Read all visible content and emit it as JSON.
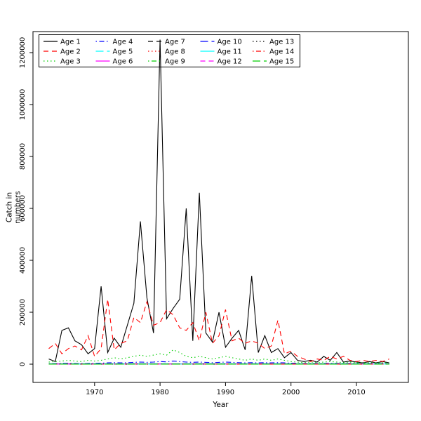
{
  "chart_data": {
    "type": "line",
    "title": "",
    "xlabel": "Year",
    "ylabel": "Catch in numbers",
    "x_start": 1963,
    "x_end": 2015,
    "xlim": [
      1960.6,
      2017.4
    ],
    "ylim": [
      0,
      1250000
    ],
    "x_ticks": [
      1970,
      1980,
      1990,
      2000,
      2010
    ],
    "x_tick_labels": [
      "1970",
      "1980",
      "1990",
      "2000",
      "2010"
    ],
    "y_ticks": [
      0,
      200000,
      400000,
      600000,
      800000,
      1000000,
      1200000
    ],
    "y_tick_labels": [
      "0",
      "200000",
      "400000",
      "600000",
      "800000",
      "1000000",
      "1200000"
    ],
    "grid": false,
    "legend_position": "top-left",
    "legend_columns": 5,
    "series": [
      {
        "name": "Age 1",
        "color": "#000000",
        "linetype": "solid",
        "values": [
          20000,
          10000,
          130000,
          140000,
          90000,
          75000,
          40000,
          60000,
          300000,
          45000,
          100000,
          65000,
          150000,
          235000,
          550000,
          255000,
          120000,
          1250000,
          175000,
          215000,
          250000,
          600000,
          90000,
          660000,
          120000,
          85000,
          200000,
          65000,
          100000,
          130000,
          55000,
          340000,
          45000,
          110000,
          45000,
          60000,
          25000,
          45000,
          15000,
          10000,
          15000,
          8000,
          30000,
          15000,
          45000,
          8000,
          12000,
          8000,
          5000,
          10000,
          5000,
          10000,
          5000
        ]
      },
      {
        "name": "Age 2",
        "color": "#FF0000",
        "linetype": "dashed",
        "values": [
          60000,
          80000,
          40000,
          60000,
          70000,
          55000,
          110000,
          30000,
          60000,
          250000,
          55000,
          80000,
          90000,
          180000,
          160000,
          240000,
          150000,
          160000,
          210000,
          190000,
          140000,
          130000,
          160000,
          90000,
          200000,
          80000,
          110000,
          210000,
          90000,
          100000,
          80000,
          90000,
          80000,
          60000,
          70000,
          170000,
          40000,
          50000,
          30000,
          20000,
          10000,
          20000,
          15000,
          30000,
          20000,
          30000,
          15000,
          10000,
          15000,
          10000,
          15000,
          10000,
          20000
        ]
      },
      {
        "name": "Age 3",
        "color": "#00CD00",
        "linetype": "dotted",
        "values": [
          8000,
          10000,
          12000,
          15000,
          12000,
          10000,
          15000,
          12000,
          15000,
          20000,
          25000,
          20000,
          25000,
          30000,
          35000,
          30000,
          35000,
          40000,
          35000,
          55000,
          45000,
          30000,
          25000,
          30000,
          25000,
          20000,
          25000,
          30000,
          25000,
          20000,
          15000,
          20000,
          15000,
          20000,
          15000,
          20000,
          15000,
          10000,
          8000,
          6000,
          8000,
          6000,
          8000,
          10000,
          8000,
          6000,
          8000,
          6000,
          5000,
          6000,
          5000,
          6000,
          5000
        ]
      },
      {
        "name": "Age 4",
        "color": "#0000FF",
        "linetype": "dotdash",
        "values": [
          2000,
          2500,
          3000,
          3500,
          3000,
          2500,
          3000,
          3500,
          4000,
          5000,
          6000,
          5000,
          6000,
          7000,
          8000,
          7000,
          8000,
          10000,
          9000,
          12000,
          10000,
          8000,
          7000,
          8000,
          7000,
          6000,
          7000,
          8000,
          7000,
          6000,
          5000,
          6000,
          5000,
          6000,
          5000,
          6000,
          5000,
          4000,
          3000,
          2500,
          3000,
          2500,
          3000,
          3500,
          3000,
          2500,
          3000,
          2500,
          2000,
          2500,
          2000,
          2500,
          2000
        ]
      },
      {
        "name": "Age 5",
        "color": "#00FFFF",
        "linetype": "longdash",
        "values": [
          1500,
          1800,
          1600,
          2000,
          1700,
          1900,
          1600,
          1800,
          1500,
          1700,
          1500,
          1800,
          1600,
          2000,
          1700,
          1900,
          1600,
          1800,
          1500,
          1700,
          1500,
          1800,
          1600,
          2000,
          1700,
          1900,
          1600,
          1800,
          1500,
          1700,
          1500,
          1800,
          1600,
          2000,
          1700,
          1900,
          1600,
          1800,
          1500,
          1700,
          1500,
          1800,
          1600,
          2000,
          1700,
          1900,
          1600,
          1800,
          1500,
          1700,
          1500,
          1800,
          1600
        ]
      },
      {
        "name": "Age 6",
        "color": "#FF00FF",
        "linetype": "solid",
        "values": [
          1200,
          1400,
          1300,
          1500,
          1250,
          1350,
          1200,
          1450,
          1300,
          1400,
          1200,
          1400,
          1300,
          1500,
          1250,
          1350,
          1200,
          1450,
          1300,
          1400,
          1200,
          1400,
          1300,
          1500,
          1250,
          1350,
          1200,
          1450,
          1300,
          1400,
          1200,
          1400,
          1300,
          1500,
          1250,
          1350,
          1200,
          1450,
          1300,
          1400,
          1200,
          1400,
          1300,
          1500,
          1250,
          1350,
          1200,
          1450,
          1300,
          1400,
          1200,
          1400,
          1300
        ]
      },
      {
        "name": "Age 7",
        "color": "#000000",
        "linetype": "dashed",
        "values": [
          1000,
          1200,
          1100,
          1300,
          1050,
          1150,
          1000,
          1250,
          1100,
          1200,
          1000,
          1200,
          1100,
          1300,
          1050,
          1150,
          1000,
          1250,
          1100,
          1200,
          1000,
          1200,
          1100,
          1300,
          1050,
          1150,
          1000,
          1250,
          1100,
          1200,
          1000,
          1200,
          1100,
          1300,
          1050,
          1150,
          1000,
          1250,
          1100,
          1200,
          1000,
          1200,
          1100,
          1300,
          1050,
          1150,
          1000,
          1250,
          1100,
          1200,
          1000,
          1200,
          1100
        ]
      },
      {
        "name": "Age 8",
        "color": "#FF0000",
        "linetype": "dotted",
        "values": [
          800,
          950,
          900,
          1000,
          850,
          900,
          800,
          950,
          900,
          1000,
          800,
          950,
          900,
          1000,
          850,
          900,
          800,
          950,
          900,
          1000,
          800,
          950,
          900,
          1000,
          850,
          900,
          800,
          950,
          900,
          1000,
          800,
          950,
          900,
          1000,
          850,
          900,
          800,
          950,
          900,
          1000,
          800,
          950,
          900,
          1000,
          850,
          900,
          800,
          950,
          900,
          1000,
          800,
          950,
          900
        ]
      },
      {
        "name": "Age 9",
        "color": "#00CD00",
        "linetype": "dotdash",
        "values": [
          700,
          800,
          750,
          850,
          700,
          800,
          750,
          850,
          700,
          800,
          700,
          800,
          750,
          850,
          700,
          800,
          750,
          850,
          700,
          800,
          700,
          800,
          750,
          850,
          700,
          800,
          750,
          850,
          700,
          800,
          700,
          800,
          750,
          850,
          700,
          800,
          750,
          850,
          700,
          800,
          700,
          800,
          750,
          850,
          700,
          800,
          750,
          850,
          700,
          800,
          700,
          800,
          750
        ]
      },
      {
        "name": "Age 10",
        "color": "#0000FF",
        "linetype": "longdash",
        "values": [
          600,
          700,
          650,
          750,
          600,
          700,
          650,
          750,
          600,
          700,
          600,
          700,
          650,
          750,
          600,
          700,
          650,
          750,
          600,
          700,
          600,
          700,
          650,
          750,
          600,
          700,
          650,
          750,
          600,
          700,
          600,
          700,
          650,
          750,
          600,
          700,
          650,
          750,
          600,
          700,
          600,
          700,
          650,
          750,
          600,
          700,
          650,
          750,
          600,
          700,
          600,
          700,
          650
        ]
      },
      {
        "name": "Age 11",
        "color": "#00FFFF",
        "linetype": "solid",
        "values": [
          500,
          600,
          550,
          650,
          500,
          600,
          550,
          650,
          500,
          600,
          500,
          600,
          550,
          650,
          500,
          600,
          550,
          650,
          500,
          600,
          500,
          600,
          550,
          650,
          500,
          600,
          550,
          650,
          500,
          600,
          500,
          600,
          550,
          650,
          500,
          600,
          550,
          650,
          500,
          600,
          500,
          600,
          550,
          650,
          500,
          600,
          550,
          650,
          500,
          600,
          500,
          600,
          550
        ]
      },
      {
        "name": "Age 12",
        "color": "#FF00FF",
        "linetype": "dashed",
        "values": [
          400,
          500,
          450,
          550,
          400,
          500,
          450,
          550,
          400,
          500,
          400,
          500,
          450,
          550,
          400,
          500,
          450,
          550,
          400,
          500,
          400,
          500,
          450,
          550,
          400,
          500,
          450,
          550,
          400,
          500,
          400,
          500,
          450,
          550,
          400,
          500,
          450,
          550,
          400,
          500,
          400,
          500,
          450,
          550,
          400,
          500,
          450,
          550,
          400,
          500,
          400,
          500,
          450
        ]
      },
      {
        "name": "Age 13",
        "color": "#000000",
        "linetype": "dotted",
        "values": [
          350,
          400,
          380,
          420,
          350,
          400,
          380,
          420,
          350,
          400,
          350,
          400,
          380,
          420,
          350,
          400,
          380,
          420,
          350,
          400,
          350,
          400,
          380,
          420,
          350,
          400,
          380,
          420,
          350,
          400,
          350,
          400,
          380,
          420,
          350,
          400,
          380,
          420,
          350,
          400,
          350,
          400,
          380,
          420,
          350,
          400,
          380,
          420,
          350,
          400,
          350,
          400,
          380
        ]
      },
      {
        "name": "Age 14",
        "color": "#FF0000",
        "linetype": "dotdash",
        "values": [
          300,
          350,
          320,
          380,
          300,
          350,
          320,
          380,
          300,
          350,
          300,
          350,
          320,
          380,
          300,
          350,
          320,
          380,
          300,
          350,
          300,
          350,
          320,
          380,
          300,
          350,
          320,
          380,
          300,
          350,
          300,
          350,
          320,
          380,
          300,
          350,
          320,
          380,
          300,
          350,
          300,
          350,
          320,
          380,
          300,
          350,
          320,
          380,
          300,
          350,
          300,
          350,
          320
        ]
      },
      {
        "name": "Age 15",
        "color": "#00CD00",
        "linetype": "longdash",
        "values": [
          250,
          300,
          280,
          320,
          250,
          300,
          280,
          320,
          250,
          300,
          250,
          300,
          280,
          320,
          250,
          300,
          280,
          320,
          250,
          300,
          250,
          300,
          280,
          320,
          250,
          300,
          280,
          320,
          250,
          300,
          250,
          300,
          280,
          320,
          250,
          300,
          280,
          320,
          250,
          300,
          250,
          300,
          280,
          320,
          250,
          300,
          280,
          320,
          250,
          300,
          250,
          300,
          280
        ]
      }
    ]
  }
}
